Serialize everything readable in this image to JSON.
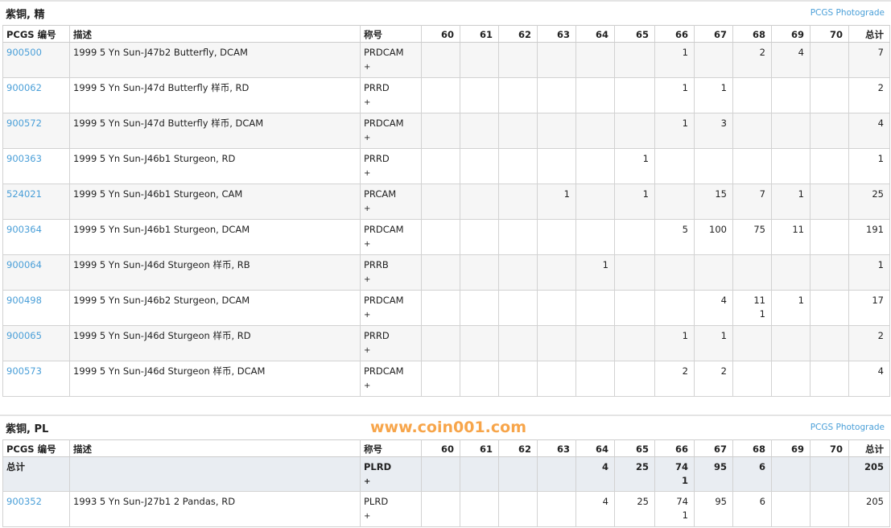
{
  "sections": [
    {
      "title": "紫铜, 精",
      "photograde": "PCGS Photograde",
      "headers": {
        "code": "PCGS 编号",
        "desc": "描述",
        "desig": "称号",
        "grades": [
          "60",
          "61",
          "62",
          "63",
          "64",
          "65",
          "66",
          "67",
          "68",
          "69",
          "70"
        ],
        "total": "总计"
      },
      "rows": [
        {
          "code": "900500",
          "desc": "1999 5 Yn Sun-J47b2 Butterfly, DCAM",
          "desig": "PRDCAM",
          "plus": "+",
          "grades": [
            "",
            "",
            "",
            "",
            "",
            "",
            "1",
            "",
            "2",
            "4",
            ""
          ],
          "grades_plus": [
            "",
            "",
            "",
            "",
            "",
            "",
            "",
            "",
            "",
            "",
            ""
          ],
          "total": "7"
        },
        {
          "code": "900062",
          "desc": "1999 5 Yn Sun-J47d Butterfly 样币, RD",
          "desig": "PRRD",
          "plus": "+",
          "grades": [
            "",
            "",
            "",
            "",
            "",
            "",
            "1",
            "1",
            "",
            "",
            ""
          ],
          "grades_plus": [
            "",
            "",
            "",
            "",
            "",
            "",
            "",
            "",
            "",
            "",
            ""
          ],
          "total": "2"
        },
        {
          "code": "900572",
          "desc": "1999 5 Yn Sun-J47d Butterfly 样币, DCAM",
          "desig": "PRDCAM",
          "plus": "+",
          "grades": [
            "",
            "",
            "",
            "",
            "",
            "",
            "1",
            "3",
            "",
            "",
            ""
          ],
          "grades_plus": [
            "",
            "",
            "",
            "",
            "",
            "",
            "",
            "",
            "",
            "",
            ""
          ],
          "total": "4"
        },
        {
          "code": "900363",
          "desc": "1999 5 Yn Sun-J46b1 Sturgeon, RD",
          "desig": "PRRD",
          "plus": "+",
          "grades": [
            "",
            "",
            "",
            "",
            "",
            "1",
            "",
            "",
            "",
            "",
            ""
          ],
          "grades_plus": [
            "",
            "",
            "",
            "",
            "",
            "",
            "",
            "",
            "",
            "",
            ""
          ],
          "total": "1"
        },
        {
          "code": "524021",
          "desc": "1999 5 Yn Sun-J46b1 Sturgeon, CAM",
          "desig": "PRCAM",
          "plus": "+",
          "grades": [
            "",
            "",
            "",
            "1",
            "",
            "1",
            "",
            "15",
            "7",
            "1",
            ""
          ],
          "grades_plus": [
            "",
            "",
            "",
            "",
            "",
            "",
            "",
            "",
            "",
            "",
            ""
          ],
          "total": "25"
        },
        {
          "code": "900364",
          "desc": "1999 5 Yn Sun-J46b1 Sturgeon, DCAM",
          "desig": "PRDCAM",
          "plus": "+",
          "grades": [
            "",
            "",
            "",
            "",
            "",
            "",
            "5",
            "100",
            "75",
            "11",
            ""
          ],
          "grades_plus": [
            "",
            "",
            "",
            "",
            "",
            "",
            "",
            "",
            "",
            "",
            ""
          ],
          "total": "191"
        },
        {
          "code": "900064",
          "desc": "1999 5 Yn Sun-J46d Sturgeon 样币, RB",
          "desig": "PRRB",
          "plus": "+",
          "grades": [
            "",
            "",
            "",
            "",
            "1",
            "",
            "",
            "",
            "",
            "",
            ""
          ],
          "grades_plus": [
            "",
            "",
            "",
            "",
            "",
            "",
            "",
            "",
            "",
            "",
            ""
          ],
          "total": "1"
        },
        {
          "code": "900498",
          "desc": "1999 5 Yn Sun-J46b2 Sturgeon, DCAM",
          "desig": "PRDCAM",
          "plus": "+",
          "grades": [
            "",
            "",
            "",
            "",
            "",
            "",
            "",
            "4",
            "11",
            "1",
            ""
          ],
          "grades_plus": [
            "",
            "",
            "",
            "",
            "",
            "",
            "",
            "",
            "1",
            "",
            ""
          ],
          "total": "17"
        },
        {
          "code": "900065",
          "desc": "1999 5 Yn Sun-J46d Sturgeon 样币, RD",
          "desig": "PRRD",
          "plus": "+",
          "grades": [
            "",
            "",
            "",
            "",
            "",
            "",
            "1",
            "1",
            "",
            "",
            ""
          ],
          "grades_plus": [
            "",
            "",
            "",
            "",
            "",
            "",
            "",
            "",
            "",
            "",
            ""
          ],
          "total": "2"
        },
        {
          "code": "900573",
          "desc": "1999 5 Yn Sun-J46d Sturgeon 样币, DCAM",
          "desig": "PRDCAM",
          "plus": "+",
          "grades": [
            "",
            "",
            "",
            "",
            "",
            "",
            "2",
            "2",
            "",
            "",
            ""
          ],
          "grades_plus": [
            "",
            "",
            "",
            "",
            "",
            "",
            "",
            "",
            "",
            "",
            ""
          ],
          "total": "4"
        }
      ]
    },
    {
      "title": "紫铜, PL",
      "photograde": "PCGS Photograde",
      "headers": {
        "code": "PCGS 编号",
        "desc": "描述",
        "desig": "称号",
        "grades": [
          "60",
          "61",
          "62",
          "63",
          "64",
          "65",
          "66",
          "67",
          "68",
          "69",
          "70"
        ],
        "total": "总计"
      },
      "total_row": {
        "code": "总计",
        "desc": "",
        "desig": "PLRD",
        "plus": "+",
        "grades": [
          "",
          "",
          "",
          "",
          "4",
          "25",
          "74",
          "95",
          "6",
          "",
          ""
        ],
        "grades_plus": [
          "",
          "",
          "",
          "",
          "",
          "",
          "1",
          "",
          "",
          "",
          ""
        ],
        "total": "205"
      },
      "rows": [
        {
          "code": "900352",
          "desc": "1993 5 Yn Sun-J27b1 2 Pandas, RD",
          "desig": "PLRD",
          "plus": "+",
          "grades": [
            "",
            "",
            "",
            "",
            "4",
            "25",
            "74",
            "95",
            "6",
            "",
            ""
          ],
          "grades_plus": [
            "",
            "",
            "",
            "",
            "",
            "",
            "1",
            "",
            "",
            "",
            ""
          ],
          "total": "205"
        }
      ]
    }
  ],
  "watermark": "www.coin001.com",
  "colors": {
    "link": "#4a9fd8",
    "total_row_bg": "#e9edf2",
    "watermark": "#f7a54a"
  }
}
